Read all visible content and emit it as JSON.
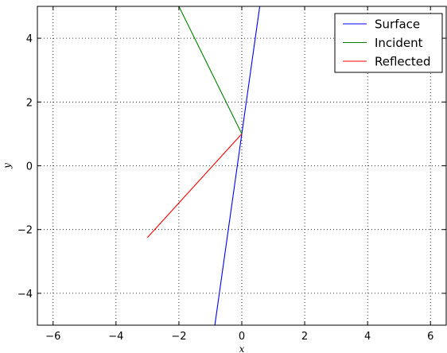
{
  "chart_data": {
    "type": "line",
    "title": "",
    "xlabel": "x",
    "ylabel": "y",
    "xlim": [
      -6.5,
      6.5
    ],
    "ylim": [
      -5,
      5
    ],
    "grid": true,
    "legend_position": "top-right",
    "xticks": [
      -6,
      -4,
      -2,
      0,
      2,
      4,
      6
    ],
    "yticks": [
      -4,
      -2,
      0,
      2,
      4
    ],
    "xtick_labels": [
      "−6",
      "−4",
      "−2",
      "0",
      "2",
      "4",
      "6"
    ],
    "ytick_labels": [
      "−4",
      "−2",
      "0",
      "2",
      "4"
    ],
    "series": [
      {
        "name": "Surface",
        "color": "#0000ff",
        "x": [
          -0.857,
          0.571
        ],
        "y": [
          -5,
          5
        ]
      },
      {
        "name": "Incident",
        "color": "#008000",
        "x": [
          -2,
          0
        ],
        "y": [
          5,
          1
        ]
      },
      {
        "name": "Reflected",
        "color": "#ff0000",
        "x": [
          0,
          -3
        ],
        "y": [
          1,
          -2.25
        ]
      }
    ]
  }
}
